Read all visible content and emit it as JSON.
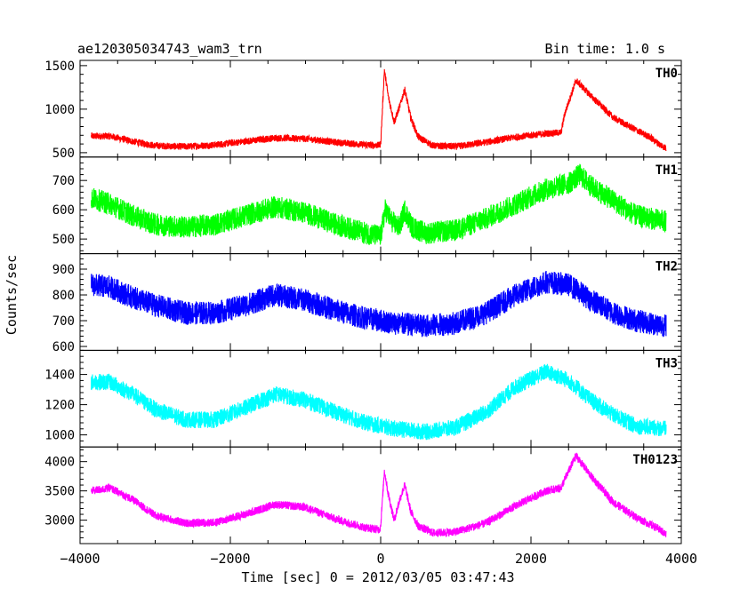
{
  "header": {
    "left_title": "ae120305034743_wam3_trn",
    "right_title": "Bin time: 1.0 s"
  },
  "chart_data": {
    "type": "line",
    "xlabel": "Time [sec] 0 = 2012/03/05 03:47:43",
    "ylabel": "Counts/sec",
    "xlim": [
      -4000,
      4000
    ],
    "x_ticks": [
      -4000,
      -2000,
      0,
      2000,
      4000
    ],
    "x_tick_labels": [
      "−4000",
      "−2000",
      "0",
      "2000",
      "4000"
    ],
    "x_data_range": [
      -3850,
      3800
    ],
    "grid": false,
    "panels": [
      {
        "name": "TH0",
        "color": "#ff0000",
        "ylim": [
          450,
          1560
        ],
        "y_ticks": [
          500,
          1000,
          1500
        ],
        "noise": 40,
        "profile": [
          [
            -3850,
            690
          ],
          [
            -3600,
            690
          ],
          [
            -3300,
            630
          ],
          [
            -3000,
            580
          ],
          [
            -2600,
            570
          ],
          [
            -2200,
            590
          ],
          [
            -1800,
            630
          ],
          [
            -1400,
            670
          ],
          [
            -1000,
            660
          ],
          [
            -600,
            620
          ],
          [
            -200,
            590
          ],
          [
            -20,
            585
          ],
          [
            0,
            600
          ],
          [
            50,
            1450
          ],
          [
            100,
            1150
          ],
          [
            180,
            850
          ],
          [
            260,
            1050
          ],
          [
            320,
            1230
          ],
          [
            400,
            900
          ],
          [
            500,
            680
          ],
          [
            700,
            580
          ],
          [
            1000,
            570
          ],
          [
            1400,
            620
          ],
          [
            1800,
            680
          ],
          [
            2200,
            720
          ],
          [
            2400,
            730
          ],
          [
            2450,
            950
          ],
          [
            2600,
            1330
          ],
          [
            2800,
            1150
          ],
          [
            3100,
            900
          ],
          [
            3400,
            760
          ],
          [
            3600,
            670
          ],
          [
            3700,
            600
          ],
          [
            3800,
            550
          ]
        ]
      },
      {
        "name": "TH1",
        "color": "#00ff00",
        "ylim": [
          450,
          780
        ],
        "y_ticks": [
          500,
          600,
          700
        ],
        "noise": 38,
        "profile": [
          [
            -3850,
            640
          ],
          [
            -3600,
            620
          ],
          [
            -3300,
            580
          ],
          [
            -3000,
            550
          ],
          [
            -2600,
            540
          ],
          [
            -2200,
            550
          ],
          [
            -1800,
            580
          ],
          [
            -1400,
            610
          ],
          [
            -1000,
            590
          ],
          [
            -600,
            550
          ],
          [
            -200,
            520
          ],
          [
            0,
            510
          ],
          [
            60,
            600
          ],
          [
            150,
            560
          ],
          [
            250,
            540
          ],
          [
            320,
            600
          ],
          [
            420,
            540
          ],
          [
            600,
            520
          ],
          [
            1000,
            530
          ],
          [
            1400,
            570
          ],
          [
            1800,
            620
          ],
          [
            2200,
            670
          ],
          [
            2500,
            690
          ],
          [
            2650,
            720
          ],
          [
            2800,
            680
          ],
          [
            3100,
            630
          ],
          [
            3400,
            580
          ],
          [
            3800,
            560
          ]
        ]
      },
      {
        "name": "TH2",
        "color": "#0000ff",
        "ylim": [
          585,
          960
        ],
        "y_ticks": [
          600,
          700,
          800,
          900
        ],
        "noise": 45,
        "profile": [
          [
            -3850,
            840
          ],
          [
            -3600,
            830
          ],
          [
            -3300,
            790
          ],
          [
            -3000,
            760
          ],
          [
            -2600,
            730
          ],
          [
            -2200,
            730
          ],
          [
            -1800,
            760
          ],
          [
            -1400,
            800
          ],
          [
            -1000,
            780
          ],
          [
            -600,
            740
          ],
          [
            -200,
            710
          ],
          [
            200,
            690
          ],
          [
            600,
            680
          ],
          [
            1000,
            690
          ],
          [
            1400,
            730
          ],
          [
            1800,
            800
          ],
          [
            2200,
            850
          ],
          [
            2500,
            840
          ],
          [
            2800,
            780
          ],
          [
            3100,
            730
          ],
          [
            3400,
            700
          ],
          [
            3800,
            680
          ]
        ]
      },
      {
        "name": "TH3",
        "color": "#00ffff",
        "ylim": [
          920,
          1560
        ],
        "y_ticks": [
          1000,
          1200,
          1400
        ],
        "noise": 55,
        "profile": [
          [
            -3850,
            1350
          ],
          [
            -3600,
            1350
          ],
          [
            -3300,
            1270
          ],
          [
            -3000,
            1170
          ],
          [
            -2600,
            1100
          ],
          [
            -2200,
            1100
          ],
          [
            -1800,
            1180
          ],
          [
            -1400,
            1270
          ],
          [
            -1000,
            1230
          ],
          [
            -600,
            1150
          ],
          [
            -200,
            1080
          ],
          [
            200,
            1040
          ],
          [
            600,
            1020
          ],
          [
            1000,
            1050
          ],
          [
            1400,
            1150
          ],
          [
            1800,
            1320
          ],
          [
            2200,
            1420
          ],
          [
            2500,
            1360
          ],
          [
            2800,
            1230
          ],
          [
            3100,
            1130
          ],
          [
            3400,
            1060
          ],
          [
            3800,
            1040
          ]
        ]
      },
      {
        "name": "TH0123",
        "color": "#ff00ff",
        "ylim": [
          2600,
          4250
        ],
        "y_ticks": [
          3000,
          3500,
          4000
        ],
        "noise": 70,
        "profile": [
          [
            -3850,
            3500
          ],
          [
            -3600,
            3550
          ],
          [
            -3300,
            3350
          ],
          [
            -3000,
            3080
          ],
          [
            -2600,
            2950
          ],
          [
            -2200,
            2960
          ],
          [
            -1800,
            3100
          ],
          [
            -1400,
            3270
          ],
          [
            -1000,
            3220
          ],
          [
            -600,
            3020
          ],
          [
            -200,
            2870
          ],
          [
            -20,
            2840
          ],
          [
            0,
            2900
          ],
          [
            50,
            3850
          ],
          [
            100,
            3450
          ],
          [
            180,
            3000
          ],
          [
            260,
            3380
          ],
          [
            320,
            3600
          ],
          [
            400,
            3150
          ],
          [
            500,
            2900
          ],
          [
            700,
            2780
          ],
          [
            1000,
            2800
          ],
          [
            1400,
            2950
          ],
          [
            1800,
            3250
          ],
          [
            2200,
            3500
          ],
          [
            2400,
            3550
          ],
          [
            2450,
            3700
          ],
          [
            2600,
            4100
          ],
          [
            2800,
            3750
          ],
          [
            3100,
            3300
          ],
          [
            3400,
            3050
          ],
          [
            3700,
            2850
          ],
          [
            3800,
            2750
          ]
        ]
      }
    ]
  }
}
